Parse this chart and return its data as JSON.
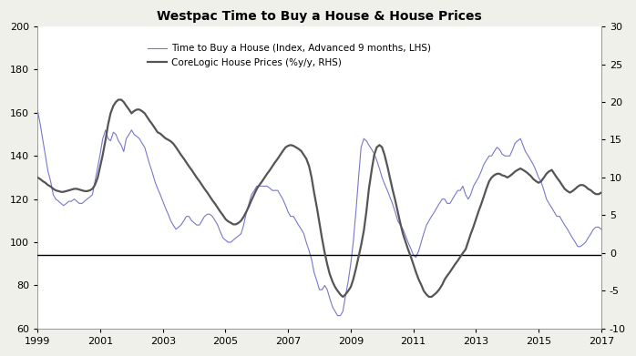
{
  "title": "Westpac Time to Buy a House & House Prices",
  "lhs_label": "Time to Buy a House (Index, Advanced 9 months, LHS)",
  "rhs_label": "CoreLogic House Prices (%y/y, RHS)",
  "lhs_color": "#7777cc",
  "rhs_color": "#555555",
  "ylim_lhs": [
    60,
    200
  ],
  "ylim_rhs": [
    -10,
    30
  ],
  "hline_lhs": 94,
  "xlim": [
    1999.0,
    2017.0
  ],
  "xticks": [
    1999,
    2001,
    2003,
    2005,
    2007,
    2009,
    2011,
    2013,
    2015,
    2017
  ],
  "yticks_lhs": [
    60,
    80,
    100,
    120,
    140,
    160,
    180,
    200
  ],
  "yticks_rhs": [
    -10,
    -5,
    0,
    5,
    10,
    15,
    20,
    25,
    30
  ],
  "lhs_linewidth": 0.8,
  "rhs_linewidth": 1.6,
  "background_color": "#f0f0eb",
  "plot_bg_color": "#ffffff",
  "lhs_data": [
    [
      1999.0,
      161
    ],
    [
      1999.08,
      155
    ],
    [
      1999.17,
      147
    ],
    [
      1999.25,
      140
    ],
    [
      1999.33,
      133
    ],
    [
      1999.42,
      128
    ],
    [
      1999.5,
      122
    ],
    [
      1999.58,
      120
    ],
    [
      1999.67,
      119
    ],
    [
      1999.75,
      118
    ],
    [
      1999.83,
      117
    ],
    [
      1999.92,
      118
    ],
    [
      2000.0,
      119
    ],
    [
      2000.08,
      119
    ],
    [
      2000.17,
      120
    ],
    [
      2000.25,
      119
    ],
    [
      2000.33,
      118
    ],
    [
      2000.42,
      118
    ],
    [
      2000.5,
      119
    ],
    [
      2000.58,
      120
    ],
    [
      2000.67,
      121
    ],
    [
      2000.75,
      122
    ],
    [
      2000.83,
      128
    ],
    [
      2000.92,
      135
    ],
    [
      2001.0,
      141
    ],
    [
      2001.08,
      148
    ],
    [
      2001.17,
      152
    ],
    [
      2001.25,
      148
    ],
    [
      2001.33,
      147
    ],
    [
      2001.42,
      151
    ],
    [
      2001.5,
      150
    ],
    [
      2001.58,
      147
    ],
    [
      2001.67,
      145
    ],
    [
      2001.75,
      142
    ],
    [
      2001.83,
      148
    ],
    [
      2001.92,
      150
    ],
    [
      2002.0,
      152
    ],
    [
      2002.08,
      150
    ],
    [
      2002.17,
      149
    ],
    [
      2002.25,
      148
    ],
    [
      2002.33,
      146
    ],
    [
      2002.42,
      144
    ],
    [
      2002.5,
      140
    ],
    [
      2002.58,
      136
    ],
    [
      2002.67,
      132
    ],
    [
      2002.75,
      128
    ],
    [
      2002.83,
      125
    ],
    [
      2002.92,
      122
    ],
    [
      2003.0,
      119
    ],
    [
      2003.08,
      116
    ],
    [
      2003.17,
      113
    ],
    [
      2003.25,
      110
    ],
    [
      2003.33,
      108
    ],
    [
      2003.42,
      106
    ],
    [
      2003.5,
      107
    ],
    [
      2003.58,
      108
    ],
    [
      2003.67,
      110
    ],
    [
      2003.75,
      112
    ],
    [
      2003.83,
      112
    ],
    [
      2003.92,
      110
    ],
    [
      2004.0,
      109
    ],
    [
      2004.08,
      108
    ],
    [
      2004.17,
      108
    ],
    [
      2004.25,
      110
    ],
    [
      2004.33,
      112
    ],
    [
      2004.42,
      113
    ],
    [
      2004.5,
      113
    ],
    [
      2004.58,
      112
    ],
    [
      2004.67,
      110
    ],
    [
      2004.75,
      108
    ],
    [
      2004.83,
      105
    ],
    [
      2004.92,
      102
    ],
    [
      2005.0,
      101
    ],
    [
      2005.08,
      100
    ],
    [
      2005.17,
      100
    ],
    [
      2005.25,
      101
    ],
    [
      2005.33,
      102
    ],
    [
      2005.42,
      103
    ],
    [
      2005.5,
      104
    ],
    [
      2005.58,
      108
    ],
    [
      2005.67,
      114
    ],
    [
      2005.75,
      118
    ],
    [
      2005.83,
      122
    ],
    [
      2005.92,
      124
    ],
    [
      2006.0,
      126
    ],
    [
      2006.08,
      126
    ],
    [
      2006.17,
      126
    ],
    [
      2006.25,
      126
    ],
    [
      2006.33,
      126
    ],
    [
      2006.42,
      125
    ],
    [
      2006.5,
      124
    ],
    [
      2006.58,
      124
    ],
    [
      2006.67,
      124
    ],
    [
      2006.75,
      122
    ],
    [
      2006.83,
      120
    ],
    [
      2006.92,
      117
    ],
    [
      2007.0,
      114
    ],
    [
      2007.08,
      112
    ],
    [
      2007.17,
      112
    ],
    [
      2007.25,
      110
    ],
    [
      2007.33,
      108
    ],
    [
      2007.42,
      106
    ],
    [
      2007.5,
      104
    ],
    [
      2007.58,
      100
    ],
    [
      2007.67,
      96
    ],
    [
      2007.75,
      92
    ],
    [
      2007.83,
      86
    ],
    [
      2007.92,
      82
    ],
    [
      2008.0,
      78
    ],
    [
      2008.08,
      78
    ],
    [
      2008.17,
      80
    ],
    [
      2008.25,
      78
    ],
    [
      2008.33,
      74
    ],
    [
      2008.42,
      70
    ],
    [
      2008.5,
      68
    ],
    [
      2008.58,
      66
    ],
    [
      2008.67,
      66
    ],
    [
      2008.75,
      68
    ],
    [
      2008.83,
      75
    ],
    [
      2008.92,
      82
    ],
    [
      2009.0,
      90
    ],
    [
      2009.08,
      100
    ],
    [
      2009.17,
      115
    ],
    [
      2009.25,
      130
    ],
    [
      2009.33,
      144
    ],
    [
      2009.42,
      148
    ],
    [
      2009.5,
      147
    ],
    [
      2009.58,
      145
    ],
    [
      2009.67,
      143
    ],
    [
      2009.75,
      141
    ],
    [
      2009.83,
      138
    ],
    [
      2009.92,
      134
    ],
    [
      2010.0,
      130
    ],
    [
      2010.08,
      127
    ],
    [
      2010.17,
      124
    ],
    [
      2010.25,
      121
    ],
    [
      2010.33,
      118
    ],
    [
      2010.42,
      114
    ],
    [
      2010.5,
      110
    ],
    [
      2010.58,
      108
    ],
    [
      2010.67,
      106
    ],
    [
      2010.75,
      103
    ],
    [
      2010.83,
      100
    ],
    [
      2010.92,
      97
    ],
    [
      2011.0,
      94
    ],
    [
      2011.08,
      93
    ],
    [
      2011.17,
      96
    ],
    [
      2011.25,
      100
    ],
    [
      2011.33,
      104
    ],
    [
      2011.42,
      108
    ],
    [
      2011.5,
      110
    ],
    [
      2011.58,
      112
    ],
    [
      2011.67,
      114
    ],
    [
      2011.75,
      116
    ],
    [
      2011.83,
      118
    ],
    [
      2011.92,
      120
    ],
    [
      2012.0,
      120
    ],
    [
      2012.08,
      118
    ],
    [
      2012.17,
      118
    ],
    [
      2012.25,
      120
    ],
    [
      2012.33,
      122
    ],
    [
      2012.42,
      124
    ],
    [
      2012.5,
      124
    ],
    [
      2012.58,
      126
    ],
    [
      2012.67,
      122
    ],
    [
      2012.75,
      120
    ],
    [
      2012.83,
      122
    ],
    [
      2012.92,
      126
    ],
    [
      2013.0,
      128
    ],
    [
      2013.08,
      130
    ],
    [
      2013.17,
      133
    ],
    [
      2013.25,
      136
    ],
    [
      2013.33,
      138
    ],
    [
      2013.42,
      140
    ],
    [
      2013.5,
      140
    ],
    [
      2013.58,
      142
    ],
    [
      2013.67,
      144
    ],
    [
      2013.75,
      143
    ],
    [
      2013.83,
      141
    ],
    [
      2013.92,
      140
    ],
    [
      2014.0,
      140
    ],
    [
      2014.08,
      140
    ],
    [
      2014.17,
      143
    ],
    [
      2014.25,
      146
    ],
    [
      2014.33,
      147
    ],
    [
      2014.42,
      148
    ],
    [
      2014.5,
      145
    ],
    [
      2014.58,
      142
    ],
    [
      2014.67,
      140
    ],
    [
      2014.75,
      138
    ],
    [
      2014.83,
      136
    ],
    [
      2014.92,
      133
    ],
    [
      2015.0,
      130
    ],
    [
      2015.08,
      128
    ],
    [
      2015.17,
      124
    ],
    [
      2015.25,
      120
    ],
    [
      2015.33,
      118
    ],
    [
      2015.42,
      116
    ],
    [
      2015.5,
      114
    ],
    [
      2015.58,
      112
    ],
    [
      2015.67,
      112
    ],
    [
      2015.75,
      110
    ],
    [
      2015.83,
      108
    ],
    [
      2015.92,
      106
    ],
    [
      2016.0,
      104
    ],
    [
      2016.08,
      102
    ],
    [
      2016.17,
      100
    ],
    [
      2016.25,
      98
    ],
    [
      2016.33,
      98
    ],
    [
      2016.42,
      99
    ],
    [
      2016.5,
      100
    ],
    [
      2016.58,
      102
    ],
    [
      2016.67,
      104
    ],
    [
      2016.75,
      106
    ],
    [
      2016.83,
      107
    ],
    [
      2016.92,
      107
    ],
    [
      2017.0,
      106
    ]
  ],
  "rhs_data": [
    [
      1999.0,
      10.0
    ],
    [
      1999.08,
      9.8
    ],
    [
      1999.17,
      9.5
    ],
    [
      1999.25,
      9.3
    ],
    [
      1999.33,
      9.0
    ],
    [
      1999.42,
      8.8
    ],
    [
      1999.5,
      8.5
    ],
    [
      1999.58,
      8.3
    ],
    [
      1999.67,
      8.2
    ],
    [
      1999.75,
      8.1
    ],
    [
      1999.83,
      8.1
    ],
    [
      1999.92,
      8.2
    ],
    [
      2000.0,
      8.3
    ],
    [
      2000.08,
      8.4
    ],
    [
      2000.17,
      8.5
    ],
    [
      2000.25,
      8.5
    ],
    [
      2000.33,
      8.4
    ],
    [
      2000.42,
      8.3
    ],
    [
      2000.5,
      8.2
    ],
    [
      2000.58,
      8.2
    ],
    [
      2000.67,
      8.3
    ],
    [
      2000.75,
      8.5
    ],
    [
      2000.83,
      9.0
    ],
    [
      2000.92,
      10.0
    ],
    [
      2001.0,
      11.5
    ],
    [
      2001.08,
      13.0
    ],
    [
      2001.17,
      15.0
    ],
    [
      2001.25,
      17.0
    ],
    [
      2001.33,
      18.5
    ],
    [
      2001.42,
      19.5
    ],
    [
      2001.5,
      20.0
    ],
    [
      2001.58,
      20.3
    ],
    [
      2001.67,
      20.3
    ],
    [
      2001.75,
      20.0
    ],
    [
      2001.83,
      19.5
    ],
    [
      2001.92,
      19.0
    ],
    [
      2002.0,
      18.5
    ],
    [
      2002.08,
      18.8
    ],
    [
      2002.17,
      19.0
    ],
    [
      2002.25,
      19.0
    ],
    [
      2002.33,
      18.8
    ],
    [
      2002.42,
      18.5
    ],
    [
      2002.5,
      18.0
    ],
    [
      2002.58,
      17.5
    ],
    [
      2002.67,
      17.0
    ],
    [
      2002.75,
      16.5
    ],
    [
      2002.83,
      16.0
    ],
    [
      2002.92,
      15.8
    ],
    [
      2003.0,
      15.5
    ],
    [
      2003.08,
      15.2
    ],
    [
      2003.17,
      15.0
    ],
    [
      2003.25,
      14.8
    ],
    [
      2003.33,
      14.5
    ],
    [
      2003.42,
      14.0
    ],
    [
      2003.5,
      13.5
    ],
    [
      2003.58,
      13.0
    ],
    [
      2003.67,
      12.5
    ],
    [
      2003.75,
      12.0
    ],
    [
      2003.83,
      11.5
    ],
    [
      2003.92,
      11.0
    ],
    [
      2004.0,
      10.5
    ],
    [
      2004.08,
      10.0
    ],
    [
      2004.17,
      9.5
    ],
    [
      2004.25,
      9.0
    ],
    [
      2004.33,
      8.5
    ],
    [
      2004.42,
      8.0
    ],
    [
      2004.5,
      7.5
    ],
    [
      2004.58,
      7.0
    ],
    [
      2004.67,
      6.5
    ],
    [
      2004.75,
      6.0
    ],
    [
      2004.83,
      5.5
    ],
    [
      2004.92,
      5.0
    ],
    [
      2005.0,
      4.5
    ],
    [
      2005.08,
      4.2
    ],
    [
      2005.17,
      4.0
    ],
    [
      2005.25,
      3.8
    ],
    [
      2005.33,
      3.8
    ],
    [
      2005.42,
      4.0
    ],
    [
      2005.5,
      4.3
    ],
    [
      2005.58,
      4.8
    ],
    [
      2005.67,
      5.5
    ],
    [
      2005.75,
      6.2
    ],
    [
      2005.83,
      7.0
    ],
    [
      2005.92,
      7.8
    ],
    [
      2006.0,
      8.5
    ],
    [
      2006.08,
      9.0
    ],
    [
      2006.17,
      9.5
    ],
    [
      2006.25,
      10.0
    ],
    [
      2006.33,
      10.5
    ],
    [
      2006.42,
      11.0
    ],
    [
      2006.5,
      11.5
    ],
    [
      2006.58,
      12.0
    ],
    [
      2006.67,
      12.5
    ],
    [
      2006.75,
      13.0
    ],
    [
      2006.83,
      13.5
    ],
    [
      2006.92,
      14.0
    ],
    [
      2007.0,
      14.2
    ],
    [
      2007.08,
      14.3
    ],
    [
      2007.17,
      14.2
    ],
    [
      2007.25,
      14.0
    ],
    [
      2007.33,
      13.8
    ],
    [
      2007.42,
      13.5
    ],
    [
      2007.5,
      13.0
    ],
    [
      2007.58,
      12.5
    ],
    [
      2007.67,
      11.5
    ],
    [
      2007.75,
      10.0
    ],
    [
      2007.83,
      8.0
    ],
    [
      2007.92,
      6.0
    ],
    [
      2008.0,
      4.0
    ],
    [
      2008.08,
      2.0
    ],
    [
      2008.17,
      0.0
    ],
    [
      2008.25,
      -1.5
    ],
    [
      2008.33,
      -2.8
    ],
    [
      2008.42,
      -3.8
    ],
    [
      2008.5,
      -4.5
    ],
    [
      2008.58,
      -5.0
    ],
    [
      2008.67,
      -5.5
    ],
    [
      2008.75,
      -5.8
    ],
    [
      2008.83,
      -5.5
    ],
    [
      2008.92,
      -5.0
    ],
    [
      2009.0,
      -4.5
    ],
    [
      2009.08,
      -3.5
    ],
    [
      2009.17,
      -2.0
    ],
    [
      2009.25,
      -0.5
    ],
    [
      2009.33,
      1.0
    ],
    [
      2009.42,
      3.0
    ],
    [
      2009.5,
      5.5
    ],
    [
      2009.58,
      8.5
    ],
    [
      2009.67,
      11.0
    ],
    [
      2009.75,
      13.0
    ],
    [
      2009.83,
      14.0
    ],
    [
      2009.92,
      14.3
    ],
    [
      2010.0,
      14.0
    ],
    [
      2010.08,
      13.0
    ],
    [
      2010.17,
      11.5
    ],
    [
      2010.25,
      10.0
    ],
    [
      2010.33,
      8.5
    ],
    [
      2010.42,
      7.0
    ],
    [
      2010.5,
      5.5
    ],
    [
      2010.58,
      4.0
    ],
    [
      2010.67,
      2.5
    ],
    [
      2010.75,
      1.5
    ],
    [
      2010.83,
      0.5
    ],
    [
      2010.92,
      -0.5
    ],
    [
      2011.0,
      -1.5
    ],
    [
      2011.08,
      -2.5
    ],
    [
      2011.17,
      -3.5
    ],
    [
      2011.25,
      -4.2
    ],
    [
      2011.33,
      -5.0
    ],
    [
      2011.42,
      -5.5
    ],
    [
      2011.5,
      -5.8
    ],
    [
      2011.58,
      -5.8
    ],
    [
      2011.67,
      -5.5
    ],
    [
      2011.75,
      -5.2
    ],
    [
      2011.83,
      -4.8
    ],
    [
      2011.92,
      -4.2
    ],
    [
      2012.0,
      -3.5
    ],
    [
      2012.08,
      -3.0
    ],
    [
      2012.17,
      -2.5
    ],
    [
      2012.25,
      -2.0
    ],
    [
      2012.33,
      -1.5
    ],
    [
      2012.42,
      -1.0
    ],
    [
      2012.5,
      -0.5
    ],
    [
      2012.58,
      0.0
    ],
    [
      2012.67,
      0.5
    ],
    [
      2012.75,
      1.5
    ],
    [
      2012.83,
      2.5
    ],
    [
      2012.92,
      3.5
    ],
    [
      2013.0,
      4.5
    ],
    [
      2013.08,
      5.5
    ],
    [
      2013.17,
      6.5
    ],
    [
      2013.25,
      7.5
    ],
    [
      2013.33,
      8.5
    ],
    [
      2013.42,
      9.5
    ],
    [
      2013.5,
      10.0
    ],
    [
      2013.58,
      10.3
    ],
    [
      2013.67,
      10.5
    ],
    [
      2013.75,
      10.5
    ],
    [
      2013.83,
      10.3
    ],
    [
      2013.92,
      10.2
    ],
    [
      2014.0,
      10.0
    ],
    [
      2014.08,
      10.2
    ],
    [
      2014.17,
      10.5
    ],
    [
      2014.25,
      10.8
    ],
    [
      2014.33,
      11.0
    ],
    [
      2014.42,
      11.2
    ],
    [
      2014.5,
      11.0
    ],
    [
      2014.58,
      10.8
    ],
    [
      2014.67,
      10.5
    ],
    [
      2014.75,
      10.2
    ],
    [
      2014.83,
      9.8
    ],
    [
      2014.92,
      9.5
    ],
    [
      2015.0,
      9.3
    ],
    [
      2015.08,
      9.5
    ],
    [
      2015.17,
      10.0
    ],
    [
      2015.25,
      10.5
    ],
    [
      2015.33,
      10.8
    ],
    [
      2015.42,
      11.0
    ],
    [
      2015.5,
      10.5
    ],
    [
      2015.58,
      10.0
    ],
    [
      2015.67,
      9.5
    ],
    [
      2015.75,
      9.0
    ],
    [
      2015.83,
      8.5
    ],
    [
      2015.92,
      8.2
    ],
    [
      2016.0,
      8.0
    ],
    [
      2016.08,
      8.2
    ],
    [
      2016.17,
      8.5
    ],
    [
      2016.25,
      8.8
    ],
    [
      2016.33,
      9.0
    ],
    [
      2016.42,
      9.0
    ],
    [
      2016.5,
      8.8
    ],
    [
      2016.58,
      8.5
    ],
    [
      2016.67,
      8.3
    ],
    [
      2016.75,
      8.0
    ],
    [
      2016.83,
      7.8
    ],
    [
      2016.92,
      7.8
    ],
    [
      2017.0,
      8.0
    ]
  ]
}
